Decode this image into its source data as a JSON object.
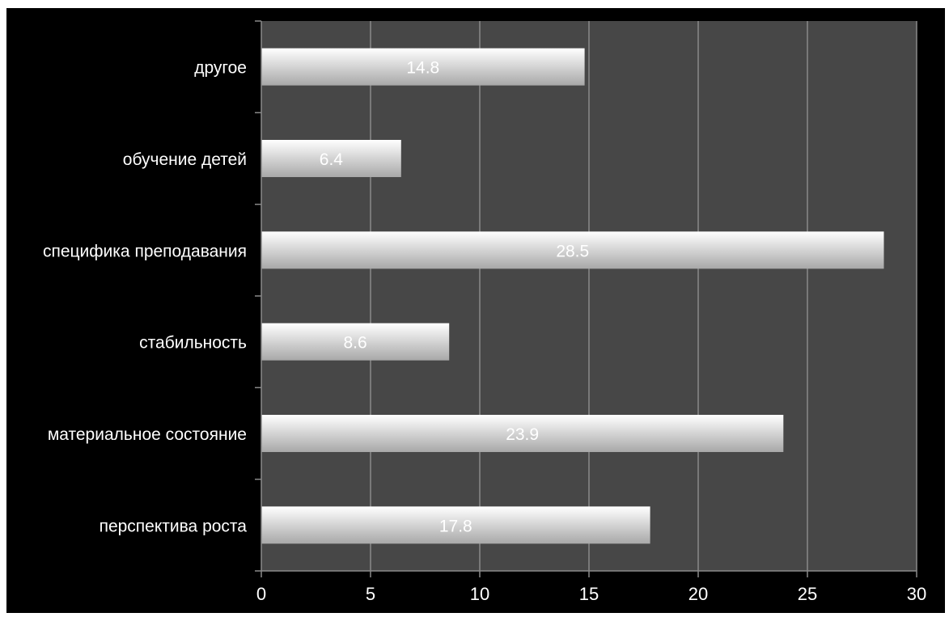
{
  "chart_data": {
    "type": "bar",
    "orientation": "horizontal",
    "categories": [
      "другое",
      "обучение детей",
      "специфика преподавания",
      "стабильность",
      "материальное состояние",
      "перспектива роста"
    ],
    "values": [
      14.8,
      6.4,
      28.5,
      8.6,
      23.9,
      17.8
    ],
    "value_labels": [
      "14.8",
      "6.4",
      "28.5",
      "8.6",
      "23.9",
      "17.8"
    ],
    "x_ticks": [
      "0",
      "5",
      "10",
      "15",
      "20",
      "25",
      "30"
    ],
    "xlim": [
      0,
      30
    ],
    "grid": true,
    "legend": "none",
    "colors": {
      "background": "#000000",
      "plot_area": "#474747",
      "gridline": "#8a8a8a",
      "axis": "#8a8a8a",
      "bar_light": "#ffffff",
      "bar_dark": "#a8a8a8",
      "text": "#ffffff"
    }
  }
}
